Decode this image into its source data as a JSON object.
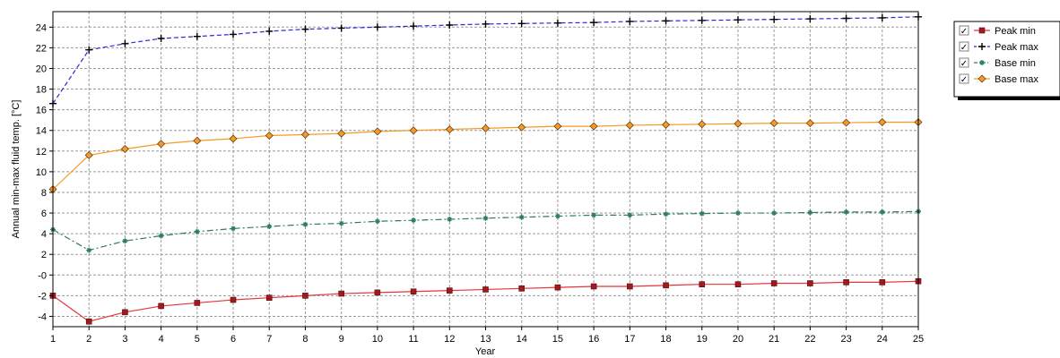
{
  "chart_data": {
    "type": "line",
    "title": "",
    "xlabel": "Year",
    "ylabel": "Annual min-max fluid temp. [°C]",
    "xlim": [
      1,
      25
    ],
    "ylim": [
      -5,
      25.5
    ],
    "x_ticks": [
      1,
      2,
      3,
      4,
      5,
      6,
      7,
      8,
      9,
      10,
      11,
      12,
      13,
      14,
      15,
      16,
      17,
      18,
      19,
      20,
      21,
      22,
      23,
      24,
      25
    ],
    "y_ticks": [
      -4,
      -2,
      0,
      2,
      4,
      6,
      8,
      10,
      12,
      14,
      16,
      18,
      20,
      22,
      24
    ],
    "y_tick_labels": [
      "-4",
      "-2",
      "-0",
      "2",
      "4",
      "6",
      "8",
      "10",
      "12",
      "14",
      "16",
      "18",
      "20",
      "22",
      "24"
    ],
    "grid": true,
    "legend_position": "top-right",
    "x": [
      1,
      2,
      3,
      4,
      5,
      6,
      7,
      8,
      9,
      10,
      11,
      12,
      13,
      14,
      15,
      16,
      17,
      18,
      19,
      20,
      21,
      22,
      23,
      24,
      25
    ],
    "series": [
      {
        "name": "Peak min",
        "color": "#e8343a",
        "marker_color": "#a01a20",
        "marker": "square",
        "line_style": "solid",
        "values": [
          -2.0,
          -4.5,
          -3.6,
          -3.0,
          -2.7,
          -2.4,
          -2.2,
          -2.0,
          -1.8,
          -1.7,
          -1.6,
          -1.5,
          -1.4,
          -1.3,
          -1.2,
          -1.1,
          -1.1,
          -1.0,
          -0.9,
          -0.9,
          -0.8,
          -0.8,
          -0.7,
          -0.7,
          -0.6
        ]
      },
      {
        "name": "Peak max",
        "color": "#2b2bd6",
        "marker_color": "#000000",
        "marker": "plus",
        "line_style": "dashed",
        "values": [
          16.6,
          21.8,
          22.4,
          22.9,
          23.1,
          23.3,
          23.6,
          23.8,
          23.9,
          24.0,
          24.1,
          24.2,
          24.3,
          24.35,
          24.4,
          24.45,
          24.55,
          24.6,
          24.65,
          24.7,
          24.75,
          24.8,
          24.85,
          24.9,
          25.0
        ]
      },
      {
        "name": "Base min",
        "color": "#2e7d5b",
        "marker_color": "#2e7d5b",
        "marker": "star",
        "line_style": "dashdot",
        "values": [
          4.4,
          2.4,
          3.3,
          3.8,
          4.2,
          4.5,
          4.7,
          4.9,
          5.0,
          5.2,
          5.3,
          5.4,
          5.5,
          5.6,
          5.7,
          5.8,
          5.8,
          5.9,
          5.95,
          6.0,
          6.0,
          6.05,
          6.1,
          6.1,
          6.15
        ]
      },
      {
        "name": "Base max",
        "color": "#f49a2a",
        "marker_color": "#e07b10",
        "marker": "diamond",
        "line_style": "solid",
        "values": [
          8.3,
          11.6,
          12.2,
          12.7,
          13.0,
          13.2,
          13.5,
          13.6,
          13.7,
          13.9,
          14.0,
          14.1,
          14.2,
          14.3,
          14.4,
          14.4,
          14.5,
          14.55,
          14.6,
          14.65,
          14.7,
          14.7,
          14.75,
          14.8,
          14.8
        ]
      }
    ]
  },
  "legend": {
    "checkbox_glyph": "✓",
    "items": [
      {
        "label": "Peak min",
        "checked": true
      },
      {
        "label": "Peak max",
        "checked": true
      },
      {
        "label": "Base min",
        "checked": true
      },
      {
        "label": "Base max",
        "checked": true
      }
    ]
  }
}
